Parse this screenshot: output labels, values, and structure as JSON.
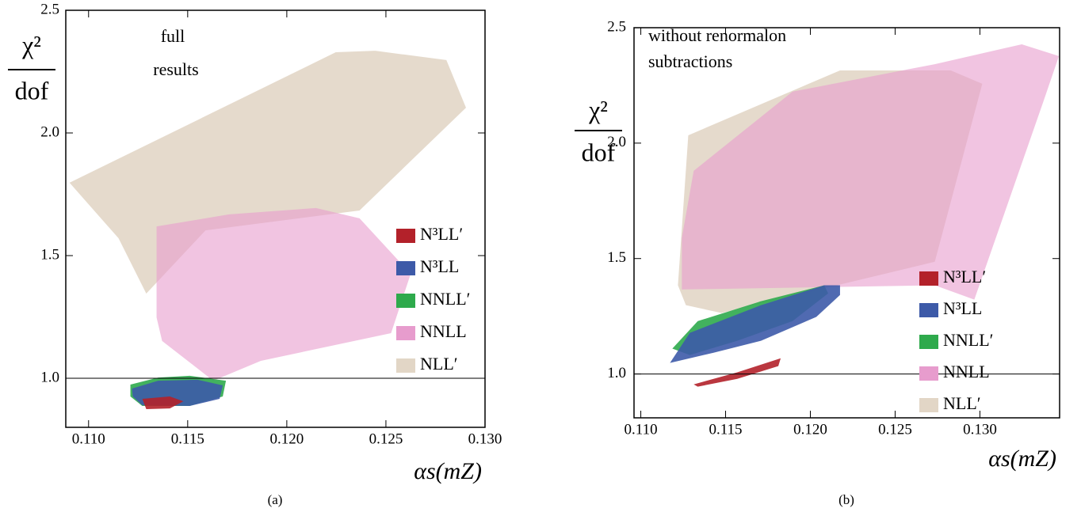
{
  "chart_data": [
    {
      "type": "region",
      "caption": "(a)",
      "annotation": [
        "full",
        "results"
      ],
      "ylabel_top": "χ²",
      "ylabel_bottom": "dof",
      "xlabel": "αs(mZ)",
      "xlim": [
        0.10885,
        0.13
      ],
      "ylim": [
        0.8,
        2.5
      ],
      "xticks": [
        {
          "value": 0.11,
          "label": "0.110"
        },
        {
          "value": 0.115,
          "label": "0.115"
        },
        {
          "value": 0.12,
          "label": "0.120"
        },
        {
          "value": 0.125,
          "label": "0.125"
        },
        {
          "value": 0.13,
          "label": "0.130"
        }
      ],
      "yticks": [
        {
          "value": 1,
          "label": "1.0"
        },
        {
          "value": 1.5,
          "label": "1.5"
        },
        {
          "value": 2,
          "label": "2.0"
        },
        {
          "value": 2.5,
          "label": "2.5"
        }
      ],
      "hline": 1,
      "series": [
        {
          "name": "NLL′",
          "color": "#e2d6c6",
          "x": [
            0.10904,
            0.12247,
            0.12446,
            0.12805,
            0.12904,
            0.12367,
            0.1159,
            0.11291,
            0.11151
          ],
          "y": [
            1.797,
            2.329,
            2.335,
            2.297,
            2.103,
            1.684,
            1.603,
            1.345,
            1.571
          ]
        },
        {
          "name": "NNLL",
          "color": "#e79ccd",
          "x": [
            0.11343,
            0.11709,
            0.12147,
            0.12367,
            0.12625,
            0.12526,
            0.11869,
            0.11629,
            0.11371,
            0.11343
          ],
          "y": [
            1.619,
            1.668,
            1.694,
            1.652,
            1.426,
            1.184,
            1.071,
            0.99,
            1.152,
            1.248
          ]
        },
        {
          "name": "NNLL′",
          "color": "#2eaa4c",
          "x": [
            0.11211,
            0.11351,
            0.1151,
            0.11693,
            0.11677,
            0.1151,
            0.11271,
            0.11211
          ],
          "y": [
            0.974,
            1.003,
            1.01,
            0.99,
            0.926,
            0.887,
            0.887,
            0.926
          ]
        },
        {
          "name": "N³LL",
          "color": "#3d5aa8",
          "x": [
            0.11219,
            0.11351,
            0.1155,
            0.11677,
            0.11661,
            0.1151,
            0.11271,
            0.11223
          ],
          "y": [
            0.958,
            0.99,
            0.994,
            0.971,
            0.916,
            0.887,
            0.89,
            0.926
          ]
        },
        {
          "name": "N³LL′",
          "color": "#b3212a",
          "x": [
            0.11271,
            0.1141,
            0.11478,
            0.1141,
            0.11291
          ],
          "y": [
            0.916,
            0.926,
            0.906,
            0.877,
            0.874
          ]
        }
      ]
    },
    {
      "type": "region",
      "caption": "(b)",
      "annotation": [
        "without renormalon",
        "subtractions"
      ],
      "ylabel_top": "χ²",
      "ylabel_bottom": "dof",
      "xlabel": "αs(mZ)",
      "xlim": [
        0.1096,
        0.1347
      ],
      "ylim": [
        0.81,
        2.5
      ],
      "xticks": [
        {
          "value": 0.11,
          "label": "0.110"
        },
        {
          "value": 0.115,
          "label": "0.115"
        },
        {
          "value": 0.12,
          "label": "0.120"
        },
        {
          "value": 0.125,
          "label": "0.125"
        },
        {
          "value": 0.13,
          "label": "0.130"
        }
      ],
      "yticks": [
        {
          "value": 1,
          "label": "1.0"
        },
        {
          "value": 1.5,
          "label": "1.5"
        },
        {
          "value": 2,
          "label": "2.0"
        },
        {
          "value": 2.5,
          "label": "2.5"
        }
      ],
      "hline": 1,
      "series": [
        {
          "name": "NLL′",
          "color": "#e2d6c6",
          "x": [
            0.11219,
            0.1128,
            0.12175,
            0.12828,
            0.13014,
            0.12734,
            0.11476,
            0.11266
          ],
          "y": [
            1.384,
            2.034,
            2.315,
            2.315,
            2.257,
            1.486,
            1.264,
            1.298
          ]
        },
        {
          "name": "NNLL",
          "color": "#e79ccd",
          "x": [
            0.11242,
            0.11312,
            0.11895,
            0.12734,
            0.13247,
            0.13466,
            0.13378,
            0.12967,
            0.12734,
            0.11242
          ],
          "y": [
            1.589,
            1.88,
            2.223,
            2.342,
            2.428,
            2.377,
            2.188,
            1.322,
            1.384,
            1.366
          ]
        },
        {
          "name": "NNLL′",
          "color": "#2eaa4c",
          "x": [
            0.11186,
            0.11336,
            0.11709,
            0.12082,
            0.12105,
            0.11895,
            0.11569,
            0.11289
          ],
          "y": [
            1.11,
            1.229,
            1.315,
            1.384,
            1.349,
            1.229,
            1.144,
            1.082
          ]
        },
        {
          "name": "N³LL",
          "color": "#3d5aa8",
          "x": [
            0.11172,
            0.11289,
            0.11709,
            0.12082,
            0.12175,
            0.12175,
            0.12035,
            0.11709,
            0.11429
          ],
          "y": [
            1.048,
            1.178,
            1.298,
            1.384,
            1.384,
            1.342,
            1.247,
            1.144,
            1.092
          ]
        },
        {
          "name": "N³LL′",
          "color": "#b3212a",
          "x": [
            0.11312,
            0.11569,
            0.11825,
            0.11811,
            0.11569,
            0.11336
          ],
          "y": [
            0.955,
            1.007,
            1.068,
            1.034,
            0.979,
            0.945
          ]
        }
      ]
    }
  ]
}
